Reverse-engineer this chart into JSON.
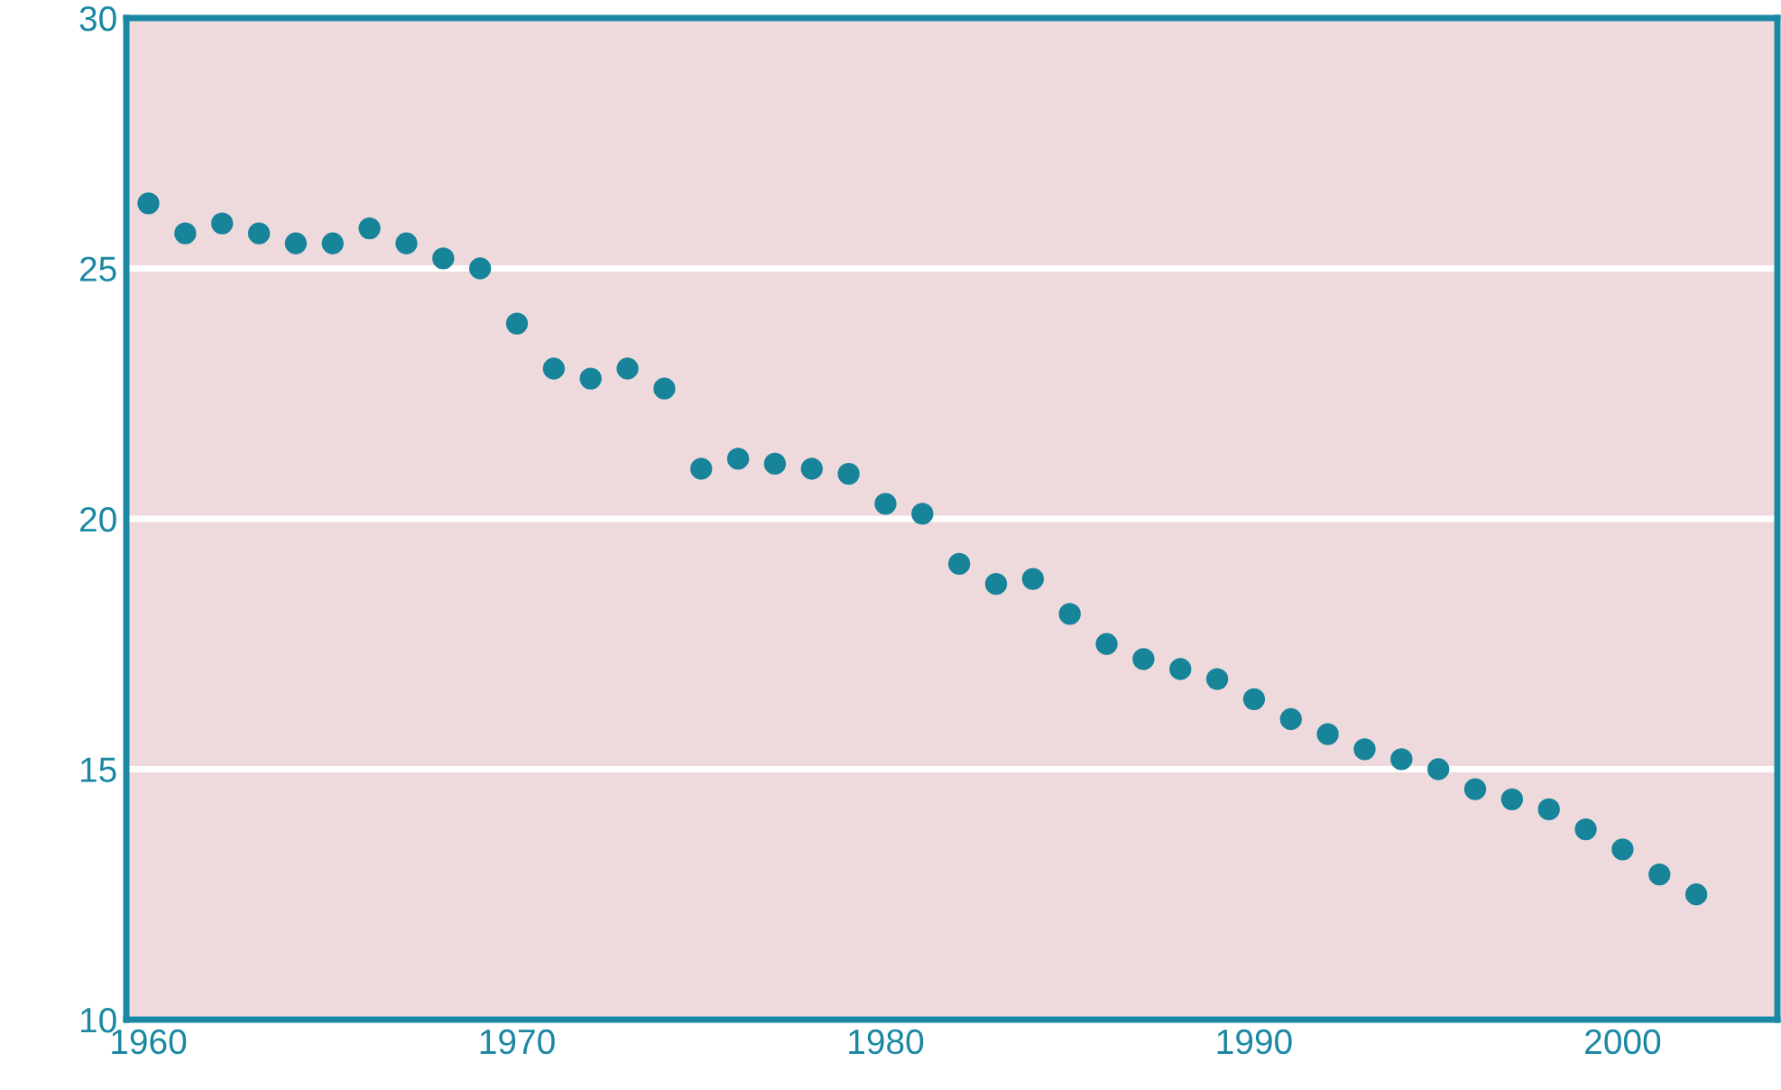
{
  "chart_data": {
    "type": "scatter",
    "x": [
      1960,
      1961,
      1962,
      1963,
      1964,
      1965,
      1966,
      1967,
      1968,
      1969,
      1970,
      1971,
      1972,
      1973,
      1974,
      1975,
      1976,
      1977,
      1978,
      1979,
      1980,
      1981,
      1982,
      1983,
      1984,
      1985,
      1986,
      1987,
      1988,
      1989,
      1990,
      1991,
      1992,
      1993,
      1994,
      1995,
      1996,
      1997,
      1998,
      1999,
      2000,
      2001,
      2002
    ],
    "series": [
      {
        "color": "#17849a",
        "values": [
          26.3,
          25.7,
          25.9,
          25.7,
          25.5,
          25.5,
          25.8,
          25.5,
          25.2,
          25.0,
          23.9,
          23.0,
          22.8,
          23.0,
          22.6,
          21.0,
          21.2,
          21.1,
          21.0,
          20.9,
          20.3,
          20.1,
          19.1,
          18.7,
          18.8,
          18.1,
          17.5,
          17.2,
          17.0,
          16.8,
          16.4,
          16.0,
          15.7,
          15.4,
          15.2,
          15.0,
          14.6,
          14.4,
          14.2,
          13.8,
          13.4,
          12.9,
          12.5
        ]
      }
    ],
    "xlim": [
      1959.4,
      2004.2
    ],
    "xticks": [
      1960,
      1970,
      1980,
      1990,
      2000
    ],
    "ylim": [
      10,
      30
    ],
    "yticks": [
      10,
      15,
      20,
      25,
      30
    ],
    "grid": "y",
    "marker": "circle",
    "legend": false
  }
}
